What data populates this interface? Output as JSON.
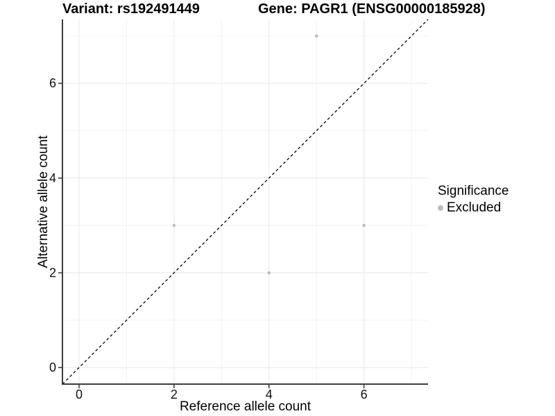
{
  "header": {
    "variant_title": "Variant: rs192491449",
    "gene_title": "Gene: PAGR1 (ENSG00000185928)"
  },
  "legend": {
    "title": "Significance",
    "items": [
      {
        "label": "Excluded",
        "color": "#bdbdbd"
      }
    ]
  },
  "chart_data": {
    "type": "scatter",
    "xlabel": "Reference allele count",
    "ylabel": "Alternative allele count",
    "xlim": [
      -0.35,
      7.35
    ],
    "ylim": [
      -0.35,
      7.35
    ],
    "x_major_ticks": [
      0,
      2,
      4,
      6
    ],
    "y_major_ticks": [
      0,
      2,
      4,
      6
    ],
    "x_minor_ticks": [
      1,
      3,
      5,
      7
    ],
    "y_minor_ticks": [
      1,
      3,
      5,
      7
    ],
    "grid": "major+minor",
    "legend_position": "right",
    "series": [
      {
        "name": "Excluded",
        "color": "#bdbdbd",
        "points": [
          [
            2,
            3
          ],
          [
            4,
            2
          ],
          [
            5,
            7
          ],
          [
            6,
            3
          ]
        ]
      }
    ],
    "reference_line": {
      "kind": "identity",
      "dashed": true,
      "color": "#000000"
    },
    "style": {
      "major_grid_color": "#e7e7e7",
      "minor_grid_color": "#f3f3f3",
      "axis_line_color": "#3c3c3c",
      "tick_color": "#333333",
      "tick_label_color": "#111111",
      "point_radius": 2.3,
      "tick_label_size": 18
    }
  }
}
